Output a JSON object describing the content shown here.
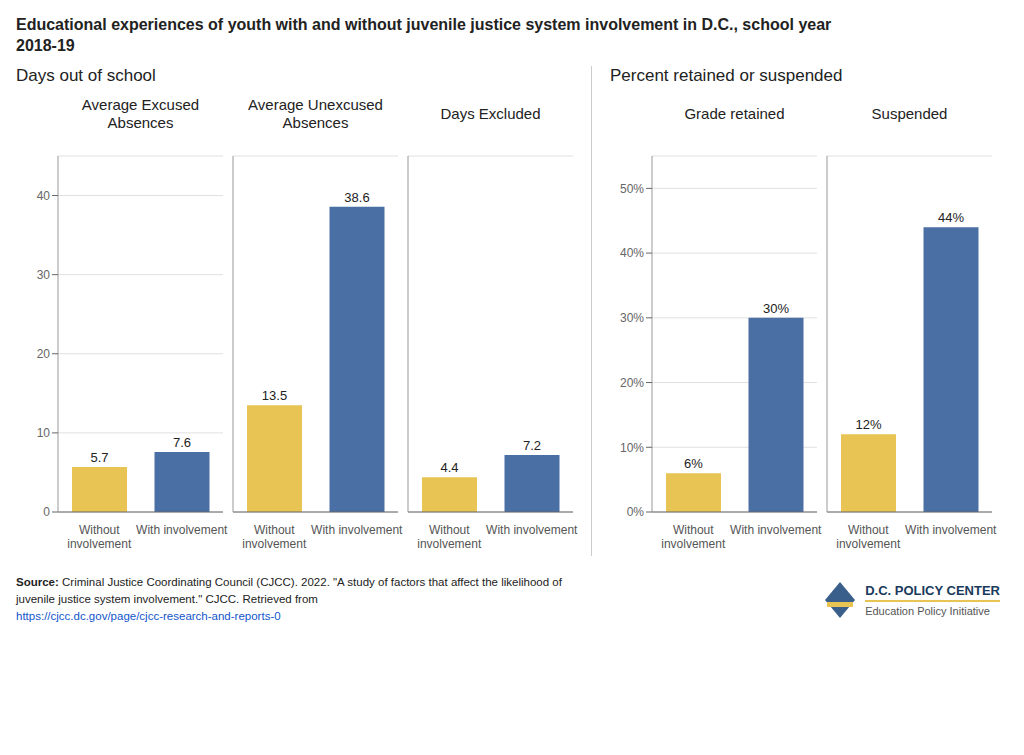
{
  "title": "Educational experiences of youth with and without juvenile justice system involvement in D.C., school year\n2018-19",
  "annotations": [
    "Source:",
    "Criminal Justice Coordinating Council (CJCC). 2022. \"A study of factors that affect the likelihood of",
    "juvenile justice system involvement.\" CJCC. Retrieved from",
    "https://cjcc.dc.gov/page/cjcc-research-and-reports-0",
    "D.C. POLICY CENTER",
    "Education Policy Initiative"
  ],
  "chart_data": [
    {
      "type": "bar",
      "subtitle": "Days out of school",
      "title": "Average Excused\nAbsences",
      "categories": [
        "Without\ninvolvement",
        "With involvement"
      ],
      "values": [
        5.7,
        7.6
      ],
      "colors": [
        "#E8C454",
        "#4A6FA5"
      ],
      "ylim": [
        0,
        45
      ],
      "yticks": [
        0,
        10,
        20,
        30,
        40
      ],
      "grid": true,
      "data_labels": true
    },
    {
      "type": "bar",
      "title": "Average Unexcused\nAbsences",
      "categories": [
        "Without\ninvolvement",
        "With involvement"
      ],
      "values": [
        13.5,
        38.6
      ],
      "colors": [
        "#E8C454",
        "#4A6FA5"
      ],
      "ylim": [
        0,
        45
      ],
      "yticks": [
        0,
        10,
        20,
        30,
        40
      ],
      "grid": true,
      "data_labels": true,
      "tick_labels": "x"
    },
    {
      "type": "bar",
      "title": "Days Excluded",
      "categories": [
        "Without\ninvolvement",
        "With involvement"
      ],
      "values": [
        4.4,
        7.2
      ],
      "colors": [
        "#E8C454",
        "#4A6FA5"
      ],
      "ylim": [
        0,
        45
      ],
      "yticks": [
        0,
        10,
        20,
        30,
        40
      ],
      "grid": true,
      "data_labels": true,
      "tick_labels": "x"
    },
    {
      "type": "bar",
      "subtitle": "Percent retained or suspended",
      "title": "Grade retained",
      "categories": [
        "Without\ninvolvement",
        "With involvement"
      ],
      "values": [
        6,
        30
      ],
      "value_labels": [
        "6%",
        "30%"
      ],
      "colors": [
        "#E8C454",
        "#4A6FA5"
      ],
      "ylim": [
        0,
        55
      ],
      "yticks": [
        {
          "value": 0,
          "label": "0%"
        },
        {
          "value": 10,
          "label": "10%"
        },
        {
          "value": 20,
          "label": "20%"
        },
        {
          "value": 30,
          "label": "30%"
        },
        {
          "value": 40,
          "label": "40%"
        },
        {
          "value": 50,
          "label": "50%"
        }
      ],
      "grid": true,
      "data_labels": true
    },
    {
      "type": "bar",
      "title": "Suspended",
      "categories": [
        "Without\ninvolvement",
        "With involvement"
      ],
      "values": [
        12,
        44
      ],
      "value_labels": [
        "12%",
        "44%"
      ],
      "colors": [
        "#E8C454",
        "#4A6FA5"
      ],
      "ylim": [
        0,
        55
      ],
      "yticks": [
        {
          "value": 0,
          "label": "0%"
        },
        {
          "value": 10,
          "label": "10%"
        },
        {
          "value": 20,
          "label": "20%"
        },
        {
          "value": 30,
          "label": "30%"
        },
        {
          "value": 40,
          "label": "40%"
        },
        {
          "value": 50,
          "label": "50%"
        }
      ],
      "grid": true,
      "data_labels": true,
      "tick_labels": "x"
    }
  ]
}
